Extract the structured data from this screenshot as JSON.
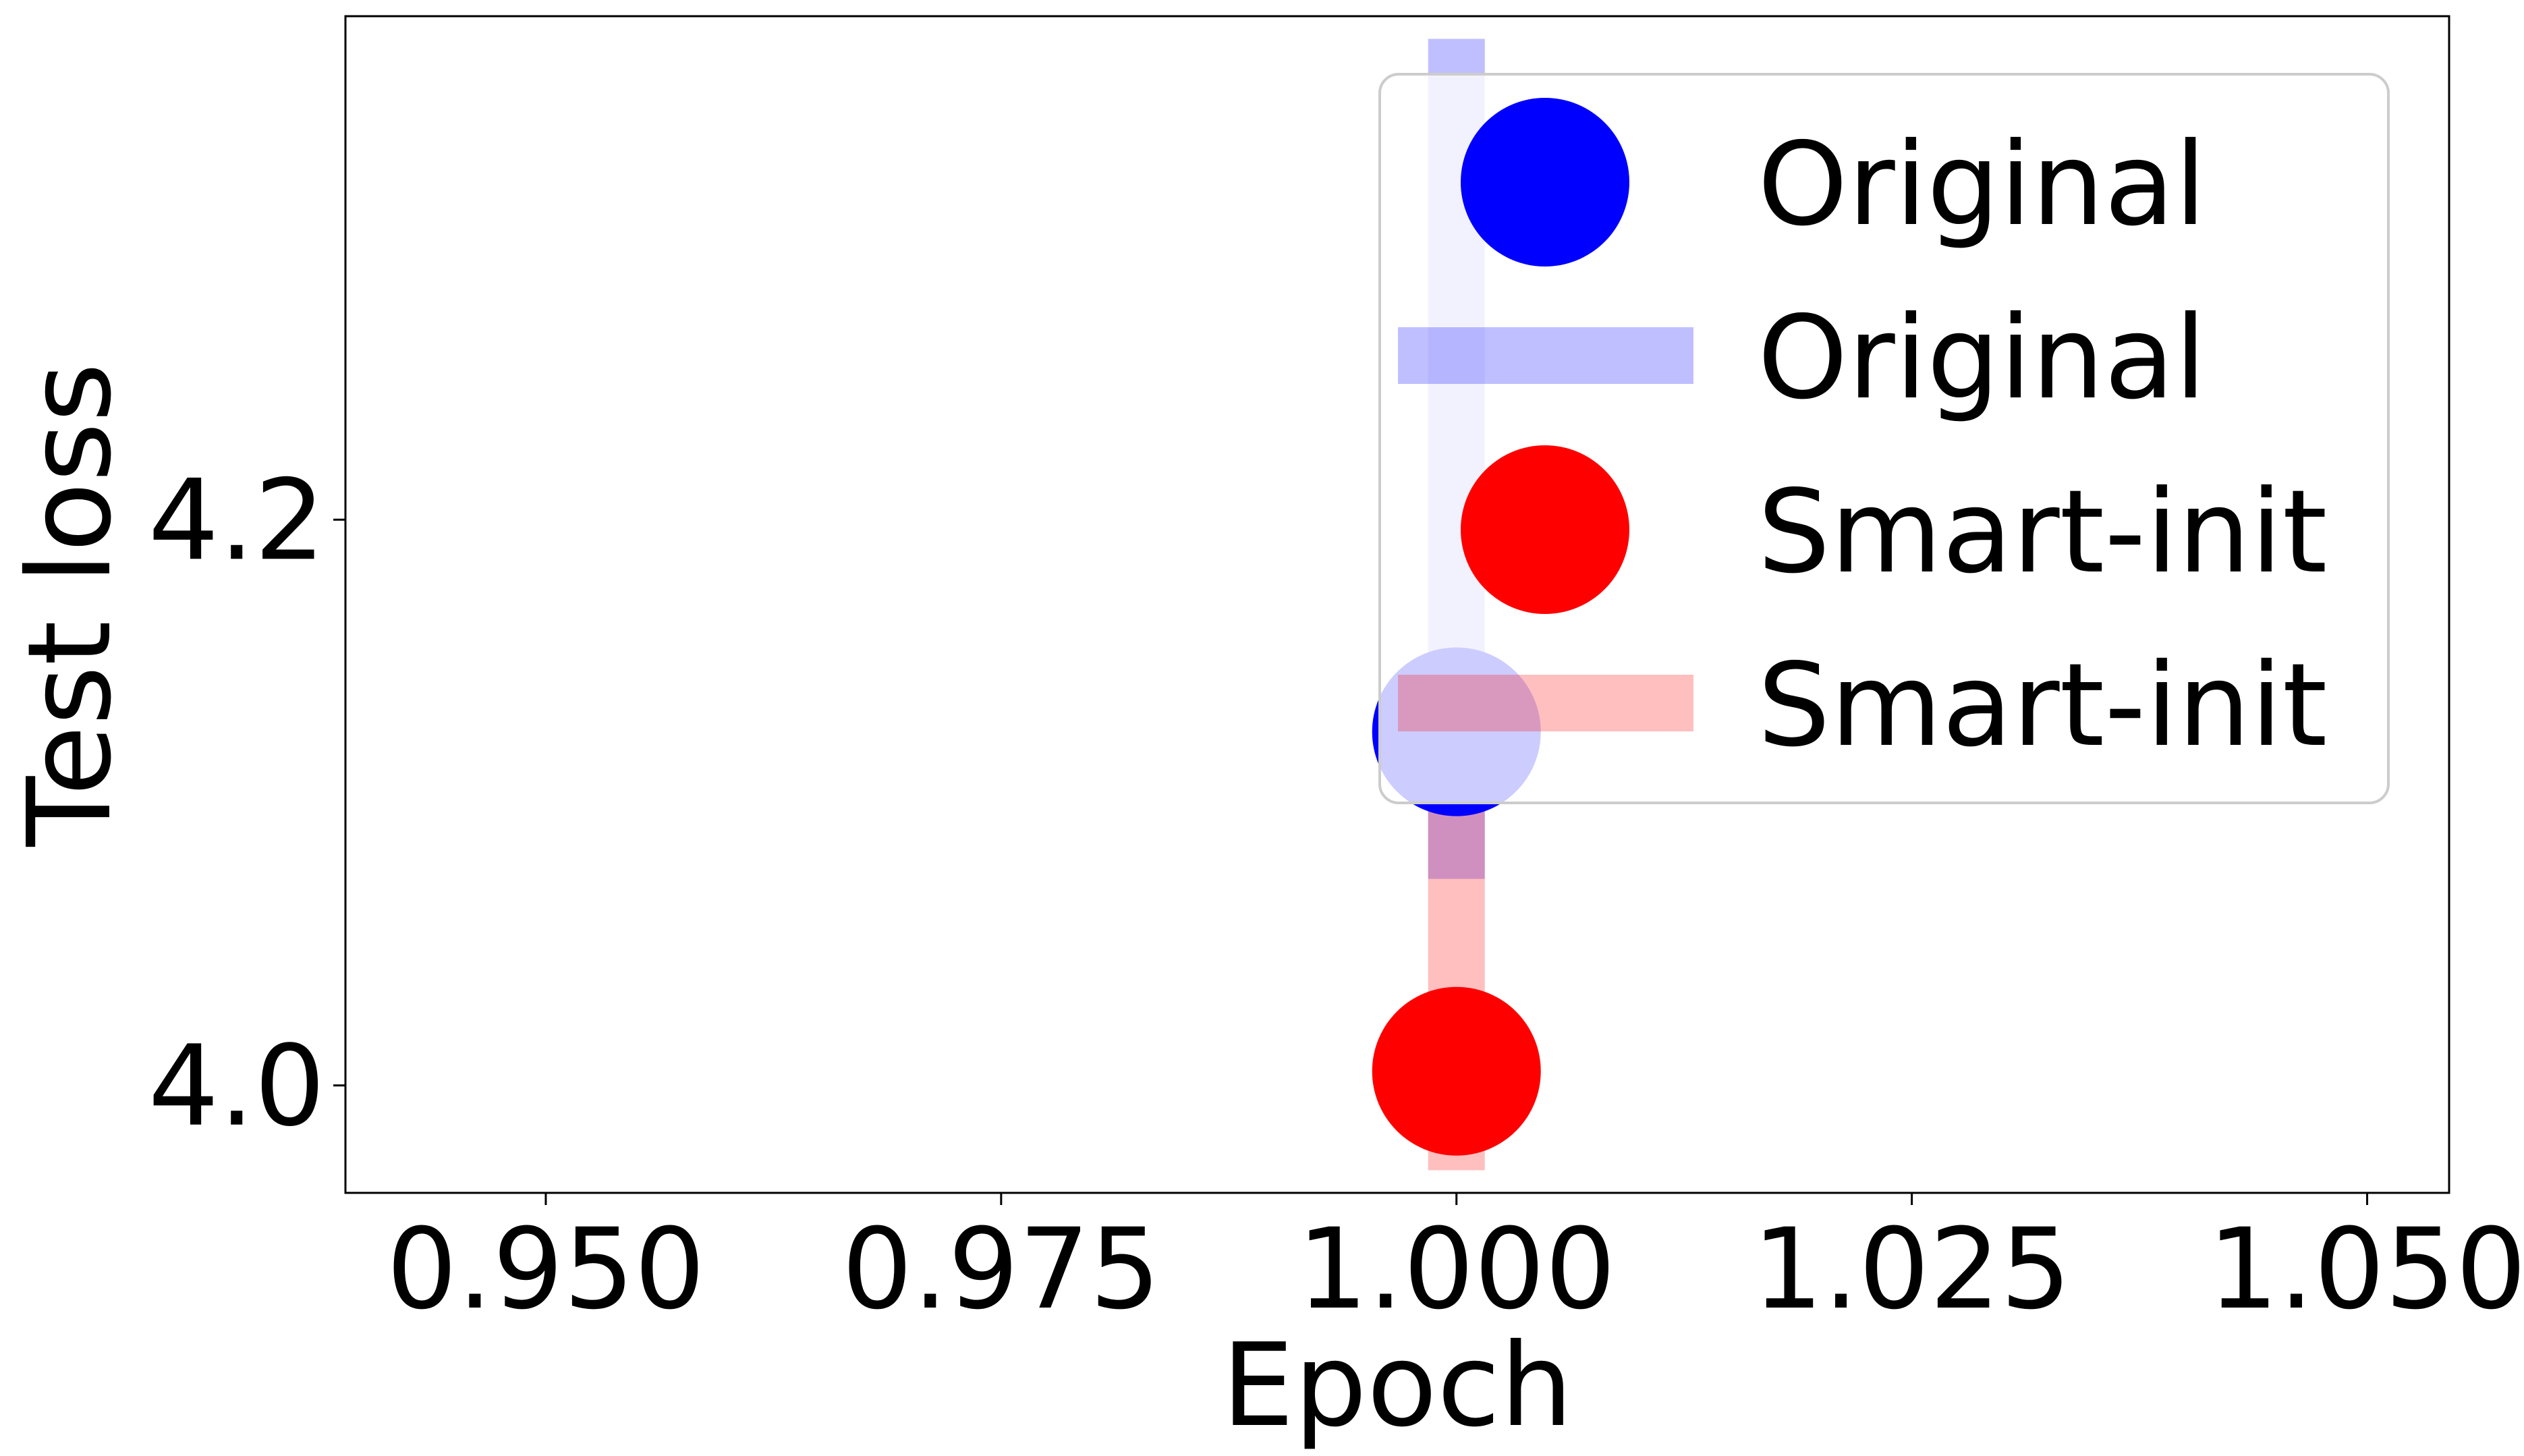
{
  "chart_data": {
    "type": "scatter",
    "title": "",
    "xlabel": "Epoch",
    "ylabel": "Test loss",
    "xlim": [
      0.939,
      1.0545
    ],
    "ylim": [
      3.962,
      4.378
    ],
    "xticks": [
      0.95,
      0.975,
      1.0,
      1.025,
      1.05
    ],
    "xtick_labels": [
      "0.950",
      "0.975",
      "1.000",
      "1.025",
      "1.050"
    ],
    "yticks": [
      4.0,
      4.2
    ],
    "ytick_labels": [
      "4.0",
      "4.2"
    ],
    "grid": false,
    "legend_position": "top-right",
    "series": [
      {
        "name": "Original",
        "kind": "scatter",
        "color": "#0000ff",
        "points": [
          {
            "x": 1.0,
            "y": 4.125
          }
        ],
        "error_band": {
          "x": 1.0,
          "low": 4.073,
          "high": 4.37
        },
        "band_color": "#0000ff",
        "band_opacity": 0.25
      },
      {
        "name": "Smart-init",
        "kind": "scatter",
        "color": "#ff0000",
        "points": [
          {
            "x": 1.0,
            "y": 4.005
          }
        ],
        "error_band": {
          "x": 1.0,
          "low": 3.97,
          "high": 4.128
        },
        "band_color": "#ff0000",
        "band_opacity": 0.25
      }
    ],
    "legend": [
      {
        "label": "Original",
        "type": "marker",
        "color": "#0000ff"
      },
      {
        "label": "Original",
        "type": "band",
        "color": "#0000ff"
      },
      {
        "label": "Smart-init",
        "type": "marker",
        "color": "#ff0000"
      },
      {
        "label": "Smart-init",
        "type": "band",
        "color": "#ff0000"
      }
    ]
  }
}
